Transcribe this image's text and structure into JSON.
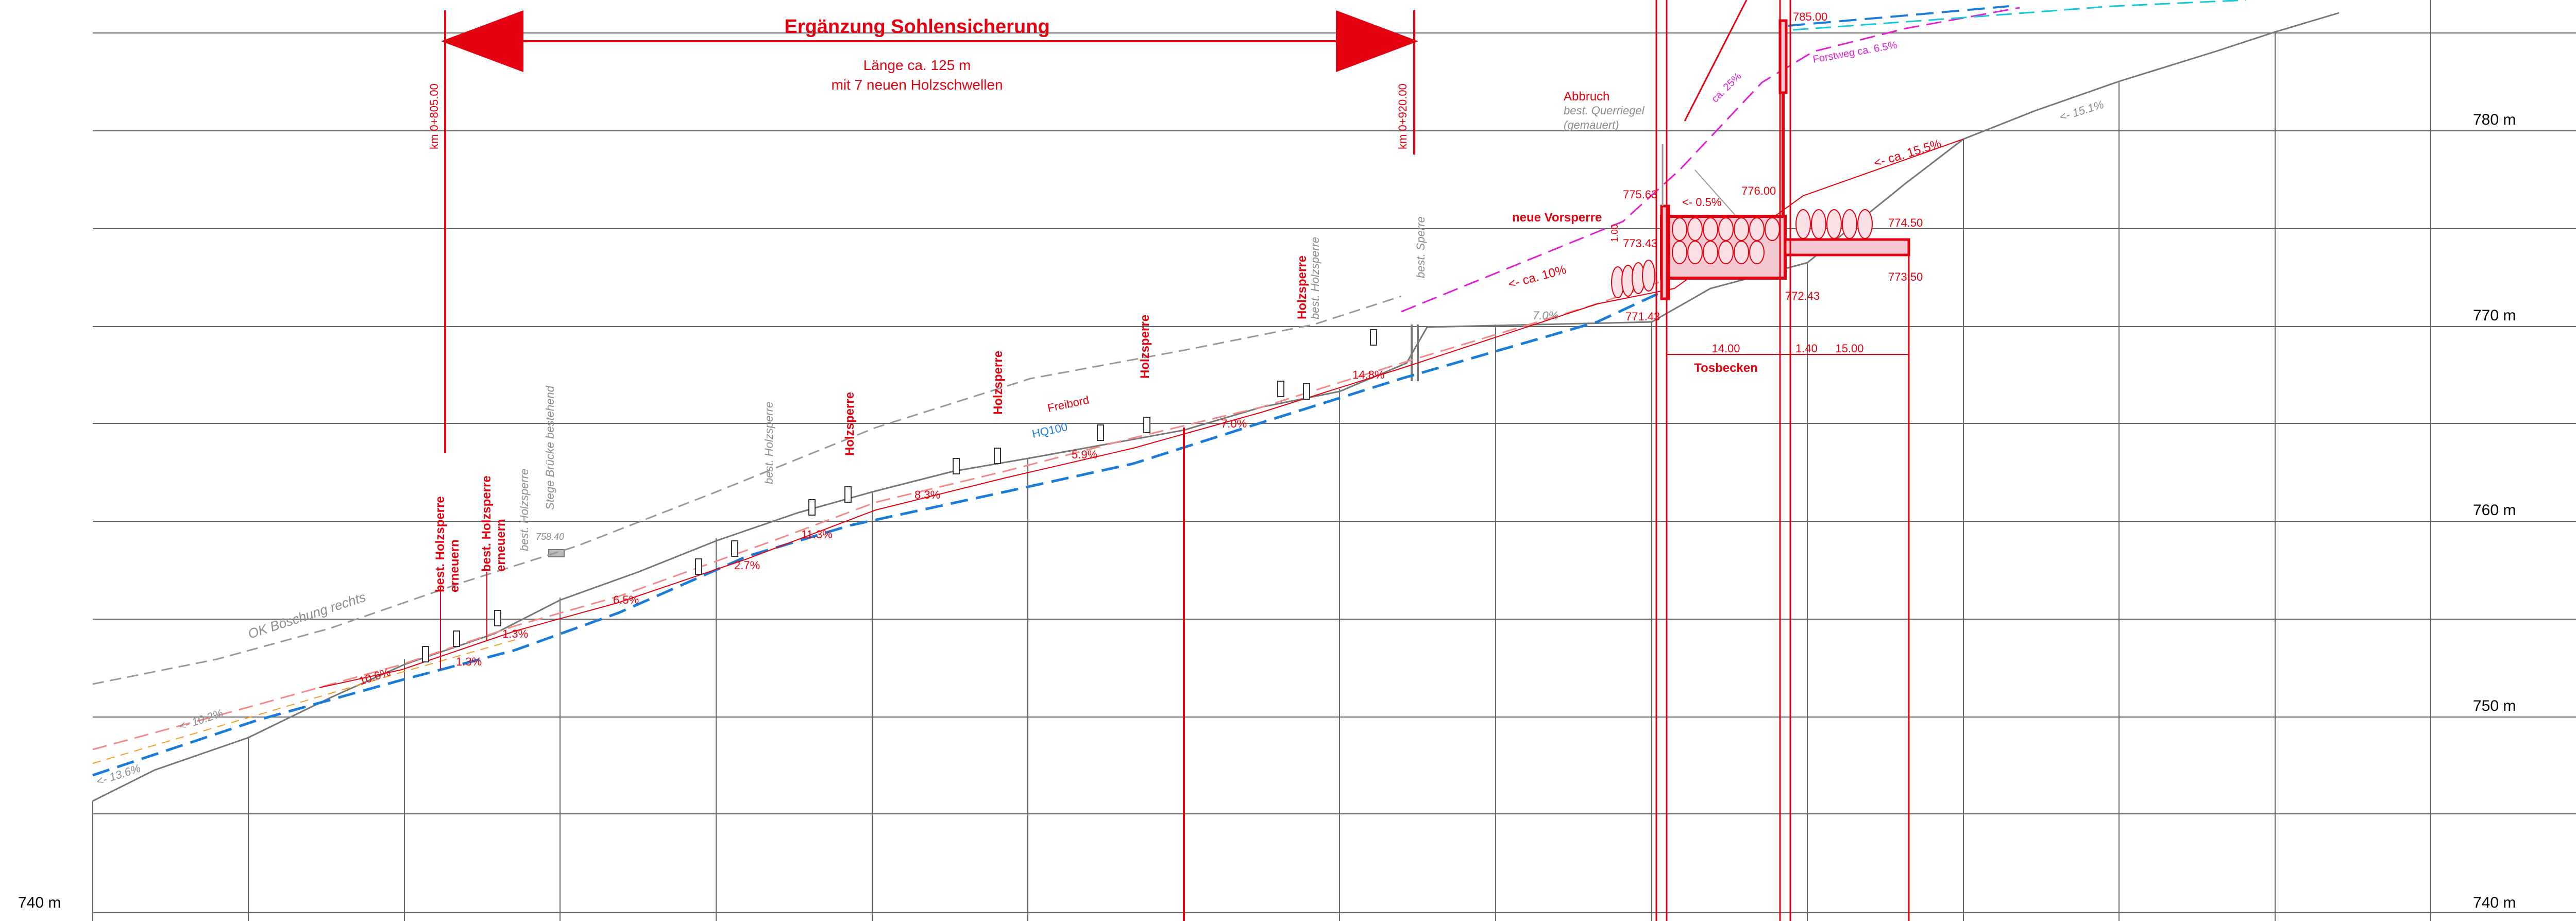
{
  "elevation_labels": {
    "e780": "780 m",
    "e770": "770 m",
    "e760": "760 m",
    "e750": "750 m",
    "e740_left": "740 m",
    "e740_right": "740 m"
  },
  "header": {
    "title": "Ergänzung Sohlensicherung",
    "length_line1": "Länge ca. 125 m",
    "length_line2": "mit 7 neuen Holzschwellen",
    "km_start": "km 0+805.00",
    "km_end": "km 0+920.00"
  },
  "structures": {
    "holzsperre_1": "Holzsperre",
    "holzsperre_2": "Holzsperre",
    "holzsperre_3": "Holzsperre",
    "holzsperre_4": "Holzsperre",
    "holzsperre_4_sub": "best. Holzsperre",
    "best_holzsperre_1a": "best. Holzsperre",
    "best_holzsperre_1b": "erneuern",
    "best_holzsperre_2a": "best. Holzsperre",
    "best_holzsperre_2b": "erneuern",
    "best_holzsperre_plain": "best. Holzsperre",
    "best_holzsperre_mid": "best. Holzsperre",
    "stege_bruecke": "Stege Brücke bestehend",
    "best_sperre": "best. Sperre",
    "neue_vorsperre": "neue Vorsperre",
    "abbruch": "Abbruch",
    "abbruch_sub1": "best. Querriegel",
    "abbruch_sub2": "(gemauert)",
    "tosbecken": "Tosbecken",
    "ok_boeschung": "OK Böschung rechts",
    "forstweg": "Forstweg ca. 6.5%",
    "freibord": "Freibord",
    "hq100": "HQ100"
  },
  "slopes": {
    "s_13_6": "<- 13.6%",
    "s_10_2": "<- 10.2%",
    "s_10_6": "10.6%",
    "s_1_3a": "1.3%",
    "s_1_3b": "1.3%",
    "s_6_5": "6.5%",
    "s_2_7": "2.7%",
    "s_11_3": "11.3%",
    "s_8_3": "8.3%",
    "s_5_9": "5.9%",
    "s_7_0a": "7.0%",
    "s_14_8": "14.8%",
    "s_7_0b": "7.0%",
    "s_10": "<- ca. 10%",
    "s_0_5": "<- 0.5%",
    "s_15_5": "<- ca. 15.5%",
    "s_15_1": "<- 15.1%",
    "s_25": "ca. 25%"
  },
  "elevations": {
    "z758_40": "758.40",
    "z775_63": "775.63",
    "z773_43": "773.43",
    "z771_43": "771.43",
    "z776_00": "776.00",
    "z774_50": "774.50",
    "z773_50": "773.50",
    "z772_43": "772.43",
    "z785_00": "785.00",
    "z1_00": "1.00"
  },
  "dimensions": {
    "d14_00": "14.00",
    "d1_40": "1.40",
    "d15_00": "15.00"
  },
  "colors": {
    "red": "#e3000f",
    "blue": "#1a7cd6",
    "grey": "#8c8c8c",
    "grid": "#666666",
    "magenta": "#e020d0",
    "cyan": "#14c8d8",
    "orange": "#f0a020",
    "pink": "#f4c8d0"
  }
}
